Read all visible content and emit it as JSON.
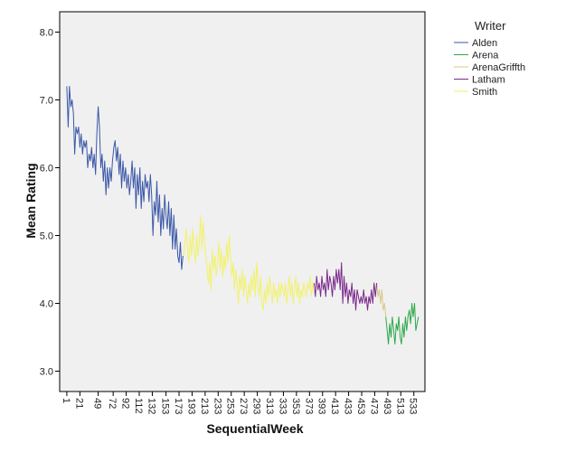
{
  "chart_data": {
    "type": "line",
    "xlabel": "SequentialWeek",
    "ylabel": "Mean Rating",
    "xlim": [
      -10,
      550
    ],
    "ylim": [
      2.7,
      8.3
    ],
    "yticks": [
      "3.0",
      "4.0",
      "5.0",
      "6.0",
      "7.0",
      "8.0"
    ],
    "xticks": [
      "1",
      "21",
      "49",
      "72",
      "92",
      "112",
      "132",
      "153",
      "173",
      "193",
      "213",
      "233",
      "253",
      "273",
      "293",
      "313",
      "333",
      "353",
      "373",
      "393",
      "413",
      "433",
      "453",
      "473",
      "493",
      "513",
      "533"
    ],
    "grid": false,
    "legend": {
      "title": "Writer",
      "placement": "right"
    },
    "series": [
      {
        "name": "Alden",
        "color": "#3a57a8",
        "x": [
          1,
          3,
          5,
          7,
          9,
          11,
          13,
          15,
          17,
          19,
          21,
          23,
          25,
          27,
          29,
          31,
          33,
          35,
          37,
          39,
          41,
          43,
          45,
          47,
          49,
          51,
          53,
          55,
          57,
          59,
          61,
          63,
          65,
          67,
          69,
          71,
          73,
          75,
          77,
          79,
          81,
          83,
          85,
          87,
          89,
          91,
          93,
          95,
          97,
          99,
          101,
          103,
          105,
          107,
          109,
          111,
          113,
          115,
          117,
          119,
          121,
          123,
          125,
          127,
          129,
          131,
          133,
          135,
          137,
          139,
          141,
          143,
          145,
          147,
          149,
          151,
          153,
          155,
          157,
          159,
          161,
          163,
          165,
          167,
          169,
          171,
          173,
          175,
          177,
          179
        ],
        "y": [
          7.2,
          6.6,
          7.2,
          6.9,
          7.0,
          6.8,
          6.2,
          6.6,
          6.5,
          6.6,
          6.3,
          6.5,
          6.2,
          6.4,
          6.3,
          6.4,
          6.0,
          6.2,
          6.1,
          6.3,
          6.0,
          6.2,
          5.9,
          6.5,
          6.9,
          6.6,
          6.0,
          6.2,
          5.8,
          6.1,
          5.6,
          6.0,
          5.7,
          6.0,
          5.8,
          6.1,
          6.3,
          6.4,
          6.1,
          6.3,
          5.9,
          6.2,
          5.7,
          6.1,
          5.8,
          6.0,
          5.7,
          5.9,
          5.6,
          5.8,
          6.1,
          5.7,
          6.0,
          5.4,
          5.9,
          5.6,
          6.0,
          5.4,
          5.8,
          5.5,
          5.9,
          5.7,
          5.8,
          5.5,
          5.9,
          5.6,
          5.0,
          5.5,
          5.3,
          5.8,
          5.2,
          5.6,
          5.0,
          5.4,
          5.1,
          5.6,
          5.3,
          5.1,
          5.5,
          5.0,
          5.4,
          4.8,
          5.3,
          4.8,
          5.1,
          4.7,
          4.6,
          4.9,
          4.5,
          4.7
        ]
      },
      {
        "name": "Arena",
        "color": "#2ca84a",
        "x": [
          490,
          492,
          494,
          496,
          498,
          500,
          502,
          504,
          506,
          508,
          510,
          512,
          514,
          516,
          518,
          520,
          522,
          524,
          526,
          528,
          530,
          532,
          534,
          536,
          538,
          540
        ],
        "y": [
          3.8,
          3.6,
          3.4,
          3.7,
          3.5,
          3.8,
          3.6,
          3.4,
          3.7,
          3.6,
          3.8,
          3.5,
          3.4,
          3.7,
          3.5,
          3.8,
          3.6,
          3.8,
          3.9,
          3.7,
          4.0,
          3.8,
          4.0,
          3.6,
          3.7,
          3.8
        ]
      },
      {
        "name": "ArenaGriffth",
        "color": "#d9c88a",
        "x": [
          476,
          478,
          480,
          482,
          484,
          486,
          488,
          490
        ],
        "y": [
          4.3,
          4.1,
          4.2,
          4.0,
          4.2,
          3.9,
          4.0,
          3.8
        ]
      },
      {
        "name": "Latham",
        "color": "#7b2a8c",
        "x": [
          380,
          382,
          384,
          386,
          388,
          390,
          392,
          394,
          396,
          398,
          400,
          402,
          404,
          406,
          408,
          410,
          412,
          414,
          416,
          418,
          420,
          422,
          424,
          426,
          428,
          430,
          432,
          434,
          436,
          438,
          440,
          442,
          444,
          446,
          448,
          450,
          452,
          454,
          456,
          458,
          460,
          462,
          464,
          466,
          468,
          470,
          472,
          474,
          476
        ],
        "y": [
          4.3,
          4.1,
          4.4,
          4.2,
          4.3,
          4.1,
          4.4,
          4.2,
          4.3,
          4.1,
          4.5,
          4.2,
          4.4,
          4.3,
          4.1,
          4.4,
          4.2,
          4.5,
          4.3,
          4.5,
          4.2,
          4.6,
          4.0,
          4.4,
          4.1,
          4.3,
          4.0,
          4.2,
          4.1,
          4.3,
          4.0,
          4.2,
          3.9,
          4.2,
          4.1,
          4.0,
          4.1,
          4.0,
          4.2,
          4.0,
          4.1,
          3.9,
          4.1,
          4.0,
          4.2,
          4.0,
          4.3,
          4.1,
          4.3
        ]
      },
      {
        "name": "Smith",
        "color": "#f2f26a",
        "x": [
          180,
          182,
          184,
          186,
          188,
          190,
          192,
          194,
          196,
          198,
          200,
          202,
          204,
          206,
          208,
          210,
          212,
          214,
          216,
          218,
          220,
          222,
          224,
          226,
          228,
          230,
          232,
          234,
          236,
          238,
          240,
          242,
          244,
          246,
          248,
          250,
          252,
          254,
          256,
          258,
          260,
          262,
          264,
          266,
          268,
          270,
          272,
          274,
          276,
          278,
          280,
          282,
          284,
          286,
          288,
          290,
          292,
          294,
          296,
          298,
          300,
          302,
          304,
          306,
          308,
          310,
          312,
          314,
          316,
          318,
          320,
          322,
          324,
          326,
          328,
          330,
          332,
          334,
          336,
          338,
          340,
          342,
          344,
          346,
          348,
          350,
          352,
          354,
          356,
          358,
          360,
          362,
          364,
          366,
          368,
          370,
          372,
          374,
          376,
          378,
          380
        ],
        "y": [
          4.7,
          4.9,
          5.1,
          4.8,
          4.6,
          5.0,
          4.7,
          5.1,
          4.8,
          4.6,
          5.0,
          4.7,
          4.9,
          5.3,
          4.8,
          5.2,
          4.9,
          4.7,
          4.5,
          4.3,
          4.6,
          4.2,
          4.8,
          4.5,
          4.7,
          4.4,
          4.6,
          4.9,
          4.5,
          4.8,
          4.4,
          4.7,
          4.5,
          4.9,
          4.6,
          5.0,
          4.7,
          4.4,
          4.6,
          4.2,
          4.5,
          4.3,
          4.0,
          4.4,
          4.2,
          4.5,
          4.1,
          4.4,
          4.2,
          4.0,
          4.3,
          4.1,
          4.4,
          4.2,
          4.5,
          4.1,
          4.6,
          4.3,
          4.1,
          4.4,
          4.0,
          3.9,
          4.2,
          4.0,
          4.3,
          4.1,
          4.4,
          4.2,
          4.0,
          4.3,
          4.1,
          4.2,
          4.0,
          4.3,
          4.1,
          4.3,
          4.2,
          4.1,
          4.3,
          4.0,
          4.2,
          4.4,
          4.1,
          4.3,
          4.0,
          4.2,
          4.4,
          4.1,
          4.3,
          4.0,
          4.2,
          4.1,
          4.3,
          4.2,
          4.1,
          4.3,
          4.2,
          4.4,
          4.1,
          4.3,
          4.2
        ]
      }
    ]
  }
}
